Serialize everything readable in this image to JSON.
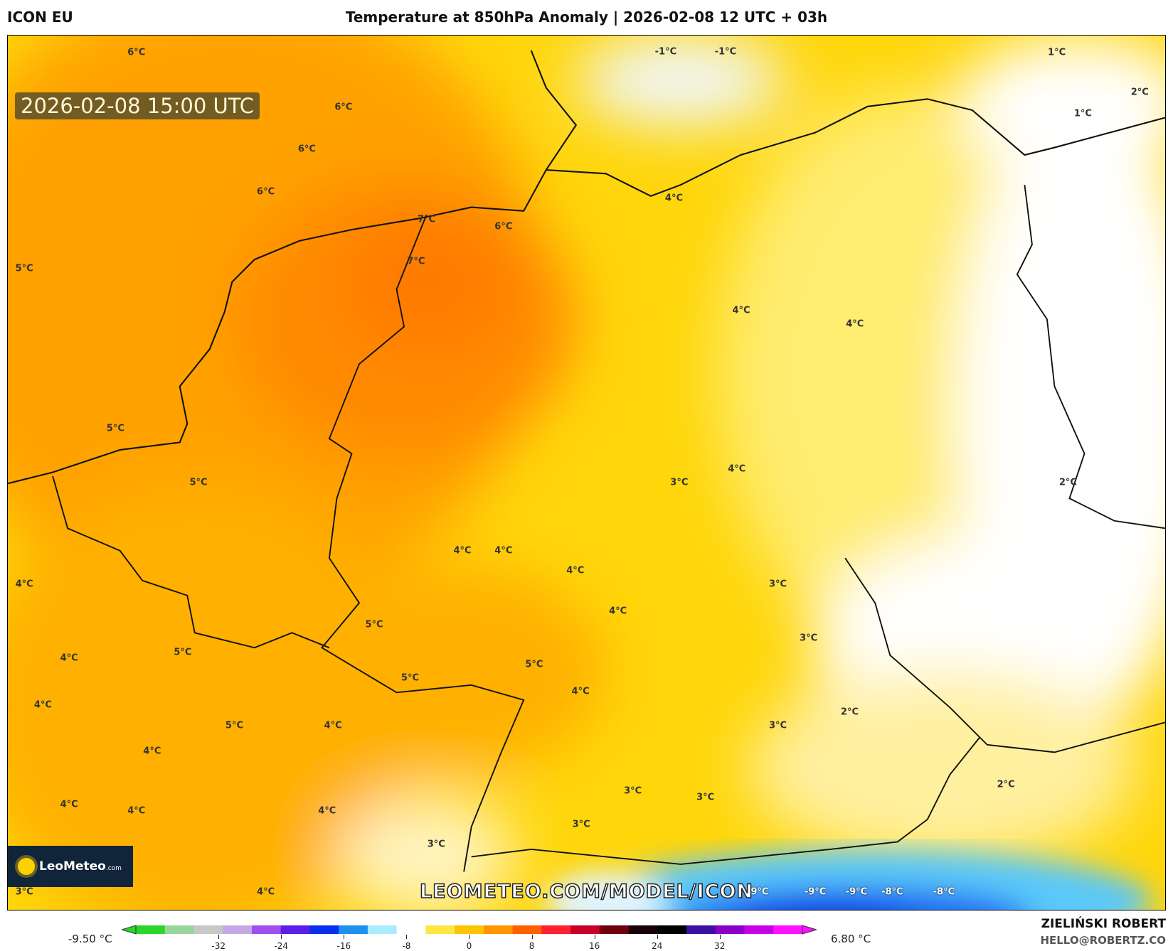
{
  "header": {
    "model": "ICON EU",
    "title": "Temperature at 850hPa Anomaly | 2026-02-08 12 UTC + 03h"
  },
  "map": {
    "valid_time": "2026-02-08 15:00 UTC",
    "watermark": "LEOMETEO.COM/MODEL/ICON",
    "logo": {
      "name": "LeoMeteo",
      "suffix": ".com"
    },
    "labels": [
      "6°C",
      "6°C",
      "6°C",
      "6°C",
      "7°C",
      "6°C",
      "7°C",
      "5°C",
      "-1°C",
      "-1°C",
      "1°C",
      "2°C",
      "1°C",
      "4°C",
      "4°C",
      "4°C",
      "5°C",
      "5°C",
      "3°C",
      "4°C",
      "2°C",
      "4°C",
      "4°C",
      "4°C",
      "4°C",
      "3°C",
      "4°C",
      "5°C",
      "3°C",
      "4°C",
      "5°C",
      "5°C",
      "5°C",
      "4°C",
      "4°C",
      "2°C",
      "5°C",
      "4°C",
      "3°C",
      "4°C",
      "2°C",
      "3°C",
      "3°C",
      "4°C",
      "4°C",
      "4°C",
      "3°C",
      "3°C",
      "3°C",
      "4°C",
      "-9°C",
      "-9°C",
      "-9°C",
      "-8°C",
      "-8°C"
    ]
  },
  "colorbar": {
    "min_label": "-9.50 °C",
    "max_label": "6.80 °C",
    "ticks": [
      "-32",
      "-24",
      "-16",
      "-8",
      "0",
      "8",
      "16",
      "24",
      "32"
    ],
    "colors": [
      "#2bd62b",
      "#9ad69a",
      "#c8c8c8",
      "#c7a8e6",
      "#a050f0",
      "#5a1ee8",
      "#0a2ef0",
      "#1e90f0",
      "#a8ecff",
      "#ffffff",
      "#ffe640",
      "#ffc400",
      "#ff9600",
      "#ff6000",
      "#ff2030",
      "#c80028",
      "#700010",
      "#1a0008",
      "#000000",
      "#3c10a0",
      "#8a00c8",
      "#c800e8",
      "#ff10ff"
    ]
  },
  "credits": {
    "author": "ZIELIŃSKI ROBERT",
    "email": "HELLO@ROBERTZ.CO"
  }
}
